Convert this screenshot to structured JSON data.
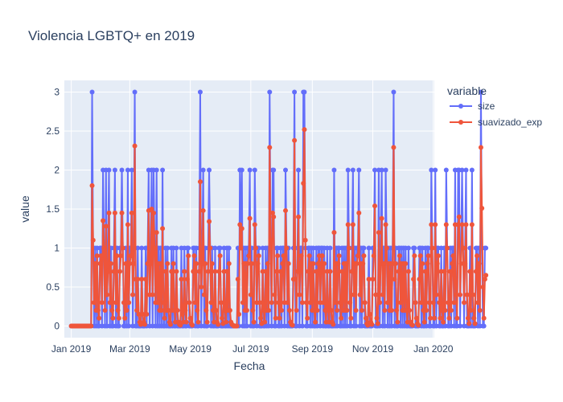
{
  "chart_data": {
    "type": "line",
    "title": "Violencia LGBTQ+ en 2019",
    "xlabel": "Fecha",
    "ylabel": "value",
    "x_start": "2019-01-01",
    "x_end": "2019-12-31",
    "xlim": [
      "2018-12-25",
      "2020-01-02"
    ],
    "ylim": [
      -0.15,
      3.15
    ],
    "x_ticks": [
      {
        "date": "2019-01-01",
        "label": "Jan 2019"
      },
      {
        "date": "2019-03-01",
        "label": "Mar 2019"
      },
      {
        "date": "2019-05-01",
        "label": "May 2019"
      },
      {
        "date": "2019-07-01",
        "label": "Jul 2019"
      },
      {
        "date": "2019-09-01",
        "label": "Sep 2019"
      },
      {
        "date": "2019-11-01",
        "label": "Nov 2019"
      },
      {
        "date": "2020-01-01",
        "label": "Jan 2020"
      }
    ],
    "y_ticks": [
      0,
      0.5,
      1,
      1.5,
      2,
      2.5,
      3
    ],
    "y_tick_labels": [
      "0",
      "0.5",
      "1",
      "1.5",
      "2",
      "2.5",
      "3"
    ],
    "grid": true,
    "legend_title": "variable",
    "legend_position": "right",
    "series": [
      {
        "name": "size",
        "color": "#636efa",
        "values": [
          0,
          0,
          0,
          0,
          0,
          0,
          0,
          0,
          0,
          0,
          0,
          0,
          0,
          0,
          0,
          0,
          0,
          0,
          0,
          0,
          0,
          3,
          1,
          0,
          1,
          0,
          1,
          0,
          0,
          1,
          1,
          0,
          2,
          1,
          0,
          2,
          0,
          1,
          2,
          0,
          1,
          0,
          0,
          1,
          2,
          0,
          1,
          0,
          0,
          1,
          1,
          2,
          1,
          0,
          0,
          1,
          0,
          2,
          0,
          1,
          1,
          2,
          0,
          1,
          3,
          0,
          0,
          1,
          0,
          0,
          0,
          1,
          0,
          0,
          0,
          1,
          0,
          1,
          2,
          0,
          1,
          2,
          0,
          2,
          1,
          0,
          2,
          0,
          1,
          0,
          1,
          0,
          2,
          0,
          0,
          1,
          0,
          1,
          0,
          0,
          0,
          1,
          0,
          1,
          0,
          0,
          1,
          0,
          0,
          0,
          0,
          1,
          0,
          0,
          1,
          0,
          0,
          1,
          1,
          0,
          0,
          0,
          0,
          1,
          1,
          0,
          1,
          0,
          0,
          1,
          3,
          0,
          1,
          2,
          0,
          1,
          0,
          0,
          1,
          2,
          1,
          0,
          1,
          0,
          0,
          1,
          0,
          0,
          0,
          1,
          1,
          0,
          0,
          0,
          1,
          0,
          0,
          1,
          0,
          1,
          0,
          0,
          0,
          0,
          0,
          0,
          0,
          0,
          1,
          0,
          2,
          1,
          2,
          0,
          1,
          0,
          1,
          0,
          1,
          1,
          2,
          0,
          1,
          0,
          0,
          2,
          1,
          0,
          1,
          1,
          0,
          0,
          0,
          1,
          0,
          0,
          1,
          0,
          1,
          0,
          3,
          1,
          0,
          2,
          2,
          0,
          0,
          1,
          1,
          0,
          0,
          1,
          0,
          1,
          1,
          0,
          2,
          1,
          0,
          1,
          0,
          0,
          0,
          0,
          1,
          3,
          0,
          0,
          1,
          2,
          0,
          1,
          1,
          0,
          3,
          3,
          1,
          0,
          0,
          1,
          1,
          0,
          1,
          0,
          1,
          0,
          0,
          1,
          0,
          1,
          1,
          0,
          1,
          1,
          0,
          1,
          0,
          0,
          1,
          0,
          0,
          1,
          0,
          0,
          0,
          2,
          0,
          1,
          0,
          1,
          1,
          0,
          0,
          1,
          0,
          1,
          0,
          1,
          0,
          2,
          1,
          0,
          0,
          1,
          2,
          0,
          1,
          0,
          1,
          1,
          2,
          0,
          1,
          0,
          1,
          1,
          0,
          0,
          0,
          0,
          1,
          0,
          0,
          0,
          1,
          1,
          2,
          0,
          0,
          0,
          2,
          0,
          1,
          2,
          0,
          1,
          0,
          2,
          1,
          0,
          1,
          0,
          1,
          0,
          1,
          3,
          0,
          1,
          0,
          0,
          1,
          1,
          0,
          1,
          0,
          1,
          0,
          1,
          0,
          0,
          1,
          0,
          0,
          0,
          0,
          1,
          1,
          0,
          0,
          0,
          0,
          1,
          1,
          0,
          1,
          0,
          0,
          1,
          0,
          1,
          1,
          0,
          0,
          2,
          1,
          0,
          0,
          2,
          0,
          1,
          1,
          0,
          0,
          1,
          0,
          0,
          1,
          0,
          2,
          1,
          0,
          0,
          1,
          0,
          1,
          1,
          0,
          2,
          0,
          0,
          2,
          2,
          0,
          1,
          2,
          1,
          0,
          1,
          2,
          0,
          0,
          0,
          1,
          0,
          2,
          0,
          0,
          0,
          1,
          1,
          0,
          1,
          0,
          3,
          1,
          0,
          0,
          1,
          1
        ]
      },
      {
        "name": "suavizado_exp",
        "color": "#ef553b",
        "values": [
          0,
          0,
          0,
          0,
          0,
          0,
          0,
          0,
          0,
          0,
          0,
          0,
          0,
          0,
          0,
          0,
          0,
          0,
          0,
          0,
          0,
          1.8,
          1.1,
          0.3,
          0.8,
          0.2,
          0.9,
          0.2,
          0.1,
          0.8,
          0.9,
          0.3,
          1.35,
          1.0,
          0.2,
          1.28,
          0.4,
          0.7,
          1.45,
          0.3,
          0.8,
          0.2,
          0.1,
          0.7,
          1.45,
          0.3,
          0.9,
          0.2,
          0.1,
          0.7,
          0.9,
          1.45,
          1.0,
          0.3,
          0.1,
          0.8,
          0.2,
          1.3,
          0.3,
          0.8,
          0.9,
          1.45,
          0.4,
          0.8,
          2.31,
          0.6,
          0.2,
          0.6,
          0.15,
          0.05,
          0.02,
          0.6,
          0.15,
          0.05,
          0.02,
          0.6,
          0.15,
          0.8,
          1.48,
          0.4,
          0.8,
          1.5,
          0.4,
          1.45,
          1.0,
          0.3,
          1.2,
          0.3,
          0.8,
          0.2,
          0.8,
          0.2,
          1.25,
          0.3,
          0.1,
          0.7,
          0.2,
          0.8,
          0.2,
          0.05,
          0.02,
          0.7,
          0.2,
          0.8,
          0.2,
          0.05,
          0.7,
          0.2,
          0.05,
          0.02,
          0.01,
          0.6,
          0.15,
          0.05,
          0.7,
          0.2,
          0.05,
          0.6,
          0.9,
          0.3,
          0.1,
          0.03,
          0.01,
          0.7,
          0.9,
          0.3,
          0.8,
          0.2,
          0.05,
          0.7,
          1.85,
          0.5,
          0.8,
          1.48,
          0.4,
          0.8,
          0.2,
          0.05,
          0.7,
          1.34,
          1.0,
          0.3,
          0.8,
          0.2,
          0.05,
          0.7,
          0.2,
          0.05,
          0.02,
          0.7,
          0.9,
          0.3,
          0.1,
          0.03,
          0.7,
          0.2,
          0.05,
          0.7,
          0.2,
          0.8,
          0.2,
          0.05,
          0.02,
          0.01,
          0.0,
          0.0,
          0.0,
          0.0,
          0.6,
          0.15,
          1.3,
          1.0,
          1.25,
          0.3,
          0.8,
          0.2,
          0.8,
          0.2,
          0.8,
          0.9,
          1.38,
          0.4,
          0.8,
          0.2,
          0.05,
          1.3,
          1.0,
          0.3,
          0.8,
          0.9,
          0.3,
          0.1,
          0.03,
          0.7,
          0.2,
          0.05,
          0.7,
          0.2,
          0.8,
          0.2,
          2.29,
          1.1,
          0.3,
          1.45,
          1.4,
          0.4,
          0.1,
          0.7,
          0.9,
          0.3,
          0.1,
          0.7,
          0.2,
          0.8,
          0.9,
          0.3,
          1.48,
          1.0,
          0.3,
          0.8,
          0.2,
          0.05,
          0.02,
          0.01,
          0.6,
          2.38,
          0.6,
          0.2,
          0.7,
          1.4,
          0.4,
          0.8,
          0.9,
          0.3,
          1.83,
          2.52,
          1.1,
          0.3,
          0.1,
          0.7,
          0.9,
          0.3,
          0.8,
          0.2,
          0.8,
          0.2,
          0.05,
          0.7,
          0.2,
          0.8,
          0.9,
          0.3,
          0.8,
          0.9,
          0.3,
          0.8,
          0.2,
          0.05,
          0.7,
          0.2,
          0.05,
          0.7,
          0.2,
          0.05,
          0.02,
          1.2,
          0.3,
          0.8,
          0.2,
          0.8,
          0.9,
          0.3,
          0.1,
          0.7,
          0.2,
          0.8,
          0.2,
          0.8,
          0.2,
          1.3,
          1.0,
          0.3,
          0.1,
          0.7,
          1.3,
          0.4,
          0.8,
          0.2,
          0.8,
          0.9,
          1.45,
          0.4,
          0.8,
          0.2,
          0.8,
          0.9,
          0.3,
          0.1,
          0.03,
          0.01,
          0.6,
          0.15,
          0.05,
          0.02,
          0.6,
          0.9,
          1.54,
          0.4,
          0.1,
          0.03,
          1.2,
          0.3,
          0.8,
          1.38,
          0.4,
          0.8,
          0.2,
          1.3,
          1.0,
          0.3,
          0.8,
          0.2,
          0.8,
          0.2,
          0.8,
          2.29,
          0.6,
          0.8,
          0.2,
          0.05,
          0.7,
          0.9,
          0.3,
          0.8,
          0.2,
          0.8,
          0.2,
          0.8,
          0.2,
          0.05,
          0.7,
          0.2,
          0.05,
          0.02,
          0.01,
          0.6,
          0.9,
          0.3,
          0.1,
          0.03,
          0.01,
          0.6,
          0.9,
          0.3,
          0.8,
          0.2,
          0.05,
          0.7,
          0.2,
          0.8,
          0.9,
          0.3,
          0.1,
          1.3,
          1.0,
          0.3,
          0.1,
          1.3,
          0.4,
          0.8,
          0.9,
          0.3,
          0.1,
          0.7,
          0.2,
          0.05,
          0.7,
          0.2,
          1.3,
          1.0,
          0.3,
          0.1,
          0.7,
          0.2,
          0.8,
          0.9,
          0.3,
          1.3,
          0.4,
          0.1,
          1.3,
          1.4,
          0.4,
          0.8,
          1.3,
          1.0,
          0.3,
          0.8,
          1.3,
          0.4,
          0.1,
          0.03,
          0.7,
          0.2,
          1.3,
          0.4,
          0.1,
          0.03,
          0.7,
          0.9,
          0.3,
          0.8,
          0.2,
          2.29,
          1.51,
          0.5,
          0.1,
          0.6,
          0.65
        ]
      }
    ]
  }
}
